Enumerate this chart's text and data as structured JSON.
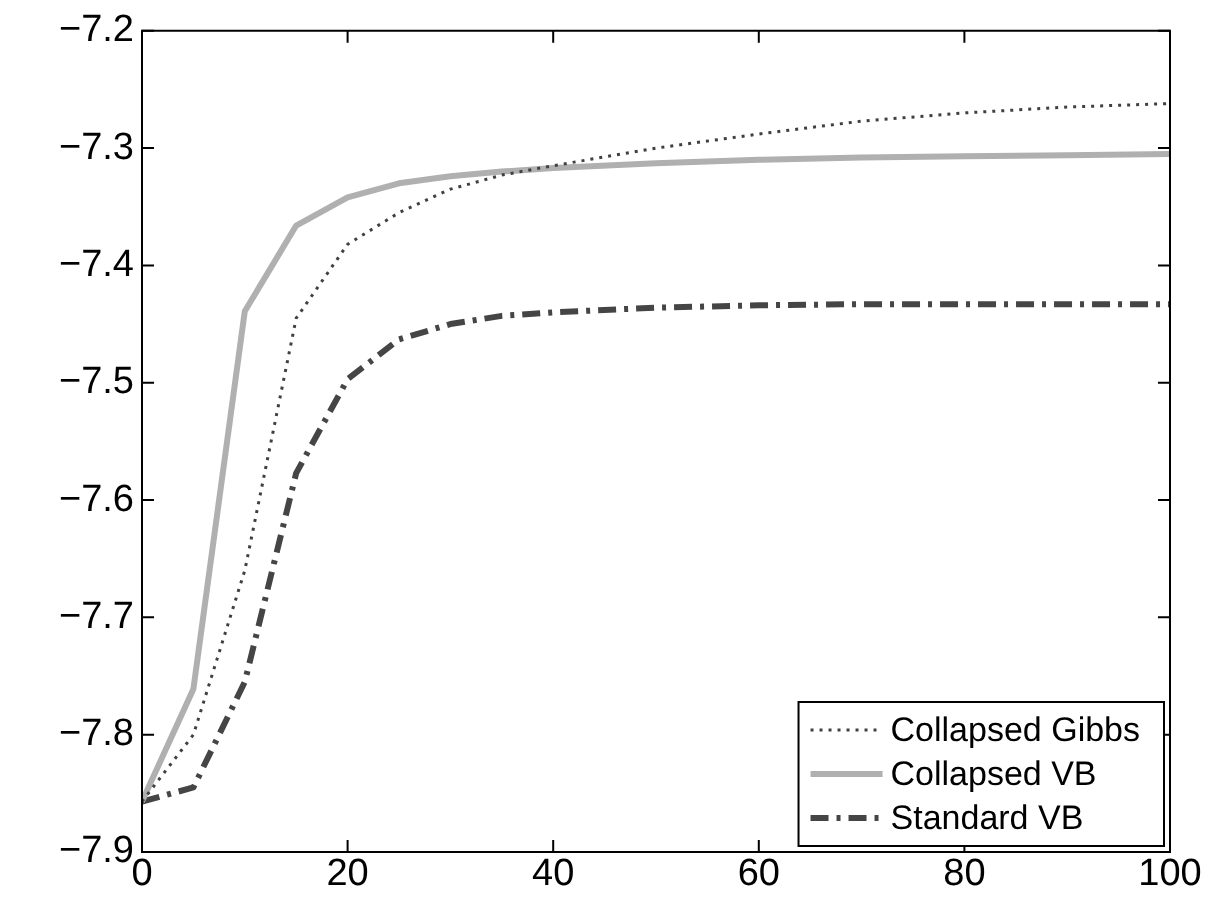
{
  "chart_data": {
    "type": "line",
    "x": [
      0,
      5,
      10,
      15,
      20,
      25,
      30,
      35,
      40,
      50,
      60,
      70,
      80,
      90,
      100
    ],
    "series": [
      {
        "name": "Collapsed Gibbs",
        "color": "#404040",
        "line_style": "dotted",
        "values": [
          -7.857,
          -7.8,
          -7.66,
          -7.445,
          -7.382,
          -7.355,
          -7.335,
          -7.323,
          -7.315,
          -7.3,
          -7.288,
          -7.277,
          -7.27,
          -7.265,
          -7.262
        ]
      },
      {
        "name": "Collapsed VB",
        "color": "#b0b0b0",
        "line_style": "solid",
        "values": [
          -7.857,
          -7.761,
          -7.439,
          -7.366,
          -7.342,
          -7.33,
          -7.324,
          -7.32,
          -7.317,
          -7.313,
          -7.31,
          -7.308,
          -7.307,
          -7.306,
          -7.305
        ]
      },
      {
        "name": "Standard VB",
        "color": "#454545",
        "line_style": "dashdot",
        "values": [
          -7.857,
          -7.845,
          -7.755,
          -7.577,
          -7.497,
          -7.463,
          -7.45,
          -7.443,
          -7.44,
          -7.436,
          -7.434,
          -7.433,
          -7.433,
          -7.433,
          -7.433
        ]
      }
    ],
    "xlim": [
      0,
      100
    ],
    "xticks": [
      0,
      20,
      40,
      60,
      80,
      100
    ],
    "ylim": [
      -7.9,
      -7.2
    ],
    "yticks": [
      {
        "value": -7.9,
        "label": "−7.9"
      },
      {
        "value": -7.8,
        "label": "−7.8"
      },
      {
        "value": -7.7,
        "label": "−7.7"
      },
      {
        "value": -7.6,
        "label": "−7.6"
      },
      {
        "value": -7.5,
        "label": "−7.5"
      },
      {
        "value": -7.4,
        "label": "−7.4"
      },
      {
        "value": -7.3,
        "label": "−7.3"
      },
      {
        "value": -7.2,
        "label": "−7.2"
      }
    ],
    "grid": false,
    "legend": "bottom right",
    "marker": "none"
  }
}
